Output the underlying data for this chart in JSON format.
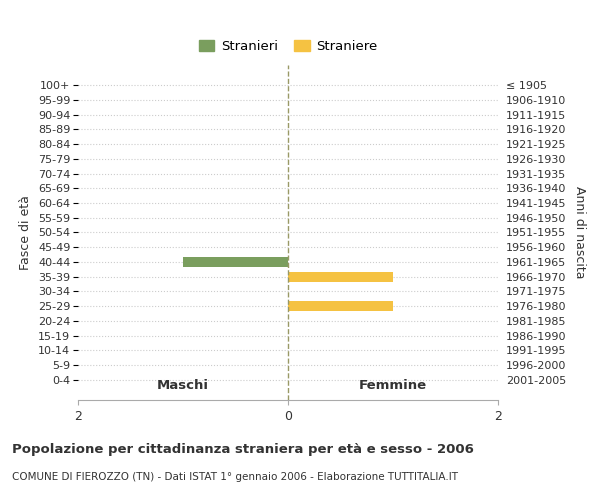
{
  "age_groups": [
    "100+",
    "95-99",
    "90-94",
    "85-89",
    "80-84",
    "75-79",
    "70-74",
    "65-69",
    "60-64",
    "55-59",
    "50-54",
    "45-49",
    "40-44",
    "35-39",
    "30-34",
    "25-29",
    "20-24",
    "15-19",
    "10-14",
    "5-9",
    "0-4"
  ],
  "birth_years": [
    "≤ 1905",
    "1906-1910",
    "1911-1915",
    "1916-1920",
    "1921-1925",
    "1926-1930",
    "1931-1935",
    "1936-1940",
    "1941-1945",
    "1946-1950",
    "1951-1955",
    "1956-1960",
    "1961-1965",
    "1966-1970",
    "1971-1975",
    "1976-1980",
    "1981-1985",
    "1986-1990",
    "1991-1995",
    "1996-2000",
    "2001-2005"
  ],
  "males": [
    0,
    0,
    0,
    0,
    0,
    0,
    0,
    0,
    0,
    0,
    0,
    0,
    1,
    0,
    0,
    0,
    0,
    0,
    0,
    0,
    0
  ],
  "females": [
    0,
    0,
    0,
    0,
    0,
    0,
    0,
    0,
    0,
    0,
    0,
    0,
    0,
    1,
    0,
    1,
    0,
    0,
    0,
    0,
    0
  ],
  "male_color": "#7a9e5e",
  "female_color": "#f5c242",
  "title_main": "Popolazione per cittadinanza straniera per età e sesso - 2006",
  "title_sub": "COMUNE DI FIEROZZO (TN) - Dati ISTAT 1° gennaio 2006 - Elaborazione TUTTITALIA.IT",
  "xlabel_left": "Maschi",
  "xlabel_right": "Femmine",
  "ylabel_left": "Fasce di età",
  "ylabel_right": "Anni di nascita",
  "legend_male": "Stranieri",
  "legend_female": "Straniere",
  "xlim": 2,
  "background_color": "#ffffff",
  "grid_color": "#cccccc",
  "center_line_color": "#999966",
  "font_color": "#333333"
}
